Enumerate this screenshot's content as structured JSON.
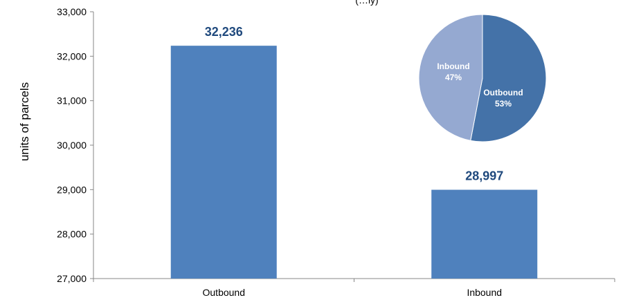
{
  "chart_data": [
    {
      "type": "bar",
      "title": "",
      "title_fragment": "(…ly)",
      "ylabel": "units of parcels",
      "xlabel": "",
      "categories": [
        "Outbound",
        "Inbound"
      ],
      "values": [
        32236,
        28997
      ],
      "data_labels": [
        "32,236",
        "28,997"
      ],
      "ylim": [
        27000,
        33000
      ],
      "yticks": [
        27000,
        28000,
        29000,
        30000,
        31000,
        32000,
        33000
      ],
      "ytick_labels": [
        "27,000",
        "28,000",
        "29,000",
        "30,000",
        "31,000",
        "32,000",
        "33,000"
      ],
      "grid": false,
      "bar_color": "#4f81bd",
      "label_color": "#1f497d"
    },
    {
      "type": "pie",
      "slices": [
        {
          "label": "Outbound",
          "percent_label": "53%",
          "value": 53,
          "color": "#4472a8"
        },
        {
          "label": "Inbound",
          "percent_label": "47%",
          "value": 47,
          "color": "#95a9d1"
        }
      ]
    }
  ]
}
